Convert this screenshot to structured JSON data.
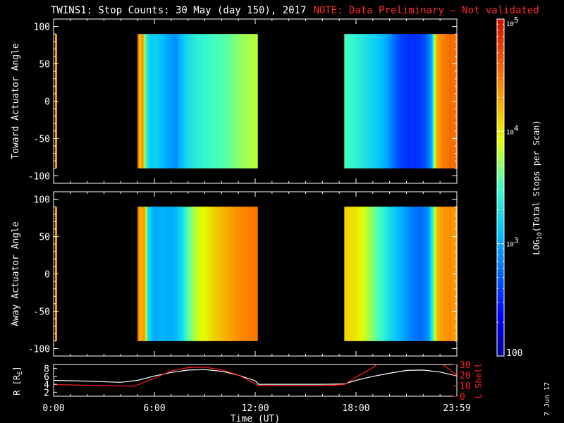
{
  "title": "TWINS1: Stop Counts: 30 May (day 150), 2017",
  "note": "NOTE: Data Preliminary – Not validated",
  "date_stamp": "7 Jun 17",
  "colors": {
    "background": "#000000",
    "axes": "#ffffff",
    "note": "#ff2a2a",
    "l_shell_line": "#ff2020",
    "r_line": "#ffffff"
  },
  "chart_data": [
    {
      "type": "heatmap",
      "panel": "top",
      "ylabel": "Toward Actuator Angle",
      "ylim": [
        -110,
        110
      ],
      "yticks": [
        100,
        50,
        0,
        -50,
        -100
      ],
      "xlim": [
        0,
        24
      ],
      "data_blocks_hours": [
        [
          5.0,
          12.1
        ],
        [
          17.3,
          24.0
        ]
      ],
      "angle_range": [
        -90,
        90
      ],
      "profile_log10": [
        [
          5.0,
          4.6
        ],
        [
          5.15,
          4.1
        ],
        [
          5.3,
          4.5
        ],
        [
          5.5,
          3.4
        ],
        [
          5.8,
          3.15
        ],
        [
          6.1,
          3.2
        ],
        [
          6.6,
          3.05
        ],
        [
          7.0,
          2.95
        ],
        [
          7.3,
          2.9
        ],
        [
          7.6,
          3.1
        ],
        [
          8.0,
          3.25
        ],
        [
          8.5,
          3.4
        ],
        [
          9.0,
          3.45
        ],
        [
          9.5,
          3.5
        ],
        [
          10.0,
          3.55
        ],
        [
          10.5,
          3.6
        ],
        [
          11.0,
          3.7
        ],
        [
          11.5,
          3.75
        ],
        [
          12.1,
          3.8
        ],
        [
          17.3,
          3.5
        ],
        [
          17.8,
          3.45
        ],
        [
          18.3,
          3.35
        ],
        [
          18.8,
          3.25
        ],
        [
          19.3,
          3.15
        ],
        [
          19.8,
          3.0
        ],
        [
          20.2,
          2.8
        ],
        [
          20.7,
          2.6
        ],
        [
          21.2,
          2.55
        ],
        [
          21.7,
          2.55
        ],
        [
          22.2,
          2.7
        ],
        [
          22.5,
          3.0
        ],
        [
          22.8,
          4.3
        ],
        [
          23.2,
          4.45
        ],
        [
          23.6,
          4.55
        ],
        [
          24.0,
          4.5
        ]
      ]
    },
    {
      "type": "heatmap",
      "panel": "middle",
      "ylabel": "Away Actuator Angle",
      "ylim": [
        -110,
        110
      ],
      "yticks": [
        100,
        50,
        0,
        -50,
        -100
      ],
      "xlim": [
        0,
        24
      ],
      "data_blocks_hours": [
        [
          5.0,
          12.1
        ],
        [
          17.3,
          24.0
        ]
      ],
      "angle_range": [
        -90,
        90
      ],
      "profile_log10": [
        [
          5.0,
          4.5
        ],
        [
          5.2,
          4.2
        ],
        [
          5.4,
          4.4
        ],
        [
          5.6,
          3.3
        ],
        [
          6.0,
          3.0
        ],
        [
          6.5,
          3.05
        ],
        [
          7.0,
          3.0
        ],
        [
          7.5,
          3.15
        ],
        [
          8.0,
          3.55
        ],
        [
          8.5,
          3.85
        ],
        [
          9.0,
          3.95
        ],
        [
          9.5,
          4.1
        ],
        [
          10.0,
          4.2
        ],
        [
          10.5,
          4.3
        ],
        [
          11.0,
          4.4
        ],
        [
          11.5,
          4.45
        ],
        [
          12.1,
          4.5
        ],
        [
          17.3,
          4.1
        ],
        [
          17.8,
          4.05
        ],
        [
          18.3,
          3.95
        ],
        [
          18.8,
          3.75
        ],
        [
          19.3,
          3.55
        ],
        [
          19.8,
          3.35
        ],
        [
          20.3,
          3.15
        ],
        [
          20.8,
          3.0
        ],
        [
          21.3,
          2.85
        ],
        [
          21.8,
          2.75
        ],
        [
          22.3,
          2.9
        ],
        [
          22.6,
          3.5
        ],
        [
          22.8,
          4.2
        ],
        [
          23.2,
          4.35
        ],
        [
          23.6,
          4.4
        ],
        [
          24.0,
          4.3
        ]
      ]
    },
    {
      "type": "line",
      "panel": "bottom",
      "xlabel": "Time (UT)",
      "xticks": [
        "0:00",
        "6:00",
        "12:00",
        "18:00",
        "23:59"
      ],
      "xtick_hours": [
        0,
        6,
        12,
        18,
        24
      ],
      "xlim": [
        0,
        24
      ],
      "ylabel_left": "R [R",
      "ylabel_left_sub": "E",
      "ylabel_left_end": "]",
      "ylim_left": [
        1,
        9
      ],
      "yticks_left": [
        "8",
        "6",
        "4",
        "2"
      ],
      "ylabel_right": "L Shell",
      "ylim_right": [
        0,
        30
      ],
      "yticks_right": [
        "30",
        "20",
        "10",
        "0"
      ],
      "series": [
        {
          "axis": "left",
          "x": [
            0,
            2,
            4,
            5,
            6,
            7,
            8,
            9,
            10,
            11,
            12.0,
            12.2,
            14,
            16,
            17.3,
            18,
            19,
            20,
            21,
            22,
            23,
            24
          ],
          "y": [
            5.0,
            4.8,
            4.5,
            5.0,
            6.1,
            7.0,
            7.6,
            7.7,
            7.3,
            6.3,
            4.9,
            4.0,
            4.0,
            4.0,
            4.1,
            5.0,
            6.0,
            6.8,
            7.5,
            7.6,
            7.1,
            6.1
          ]
        },
        {
          "axis": "right",
          "x": [
            0,
            3,
            4.8,
            6,
            7,
            8,
            9,
            10,
            11,
            12.2,
            14,
            16,
            17.3,
            18,
            19,
            20,
            22,
            23,
            24
          ],
          "y": [
            11,
            10,
            9.5,
            17,
            24,
            27,
            27.5,
            25,
            20,
            10,
            10,
            10,
            11,
            18,
            27,
            40,
            42,
            32,
            20
          ]
        }
      ]
    },
    {
      "type": "heatmap",
      "panel": "colorbar",
      "ylabel": "LOG",
      "ylabel_sub": "10",
      "ylabel_end": "(Total Stops per Scan)",
      "range_log10": [
        2,
        5
      ],
      "ticks": [
        {
          "value": 5,
          "base": "10",
          "exp": "5"
        },
        {
          "value": 4,
          "base": "10",
          "exp": "4"
        },
        {
          "value": 3,
          "base": "10",
          "exp": "3"
        },
        {
          "value": 2,
          "base": "100",
          "exp": ""
        }
      ]
    }
  ]
}
